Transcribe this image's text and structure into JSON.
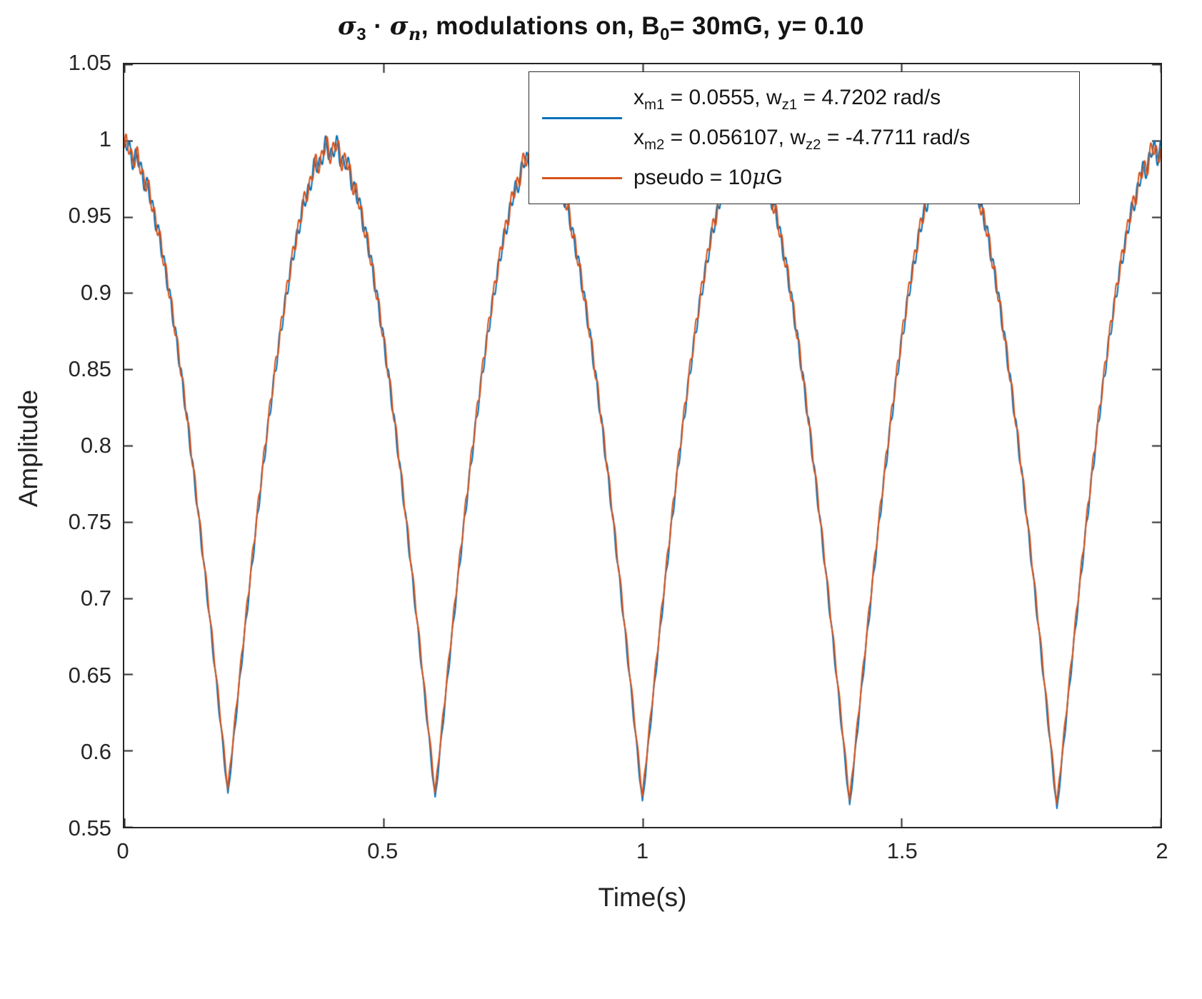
{
  "chart_data": {
    "type": "line",
    "title": "σ3 · σn, modulations on, B0= 30mG, y= 0.10",
    "xlabel": "Time(s)",
    "ylabel": "Amplitude",
    "xlim": [
      0,
      2
    ],
    "ylim": [
      0.55,
      1.05
    ],
    "grid": false,
    "legend_position": "northeast",
    "xticks": [
      {
        "v": 0,
        "label": "0"
      },
      {
        "v": 0.5,
        "label": "0.5"
      },
      {
        "v": 1,
        "label": "1"
      },
      {
        "v": 1.5,
        "label": "1.5"
      },
      {
        "v": 2,
        "label": "2"
      }
    ],
    "yticks": [
      {
        "v": 0.55,
        "label": "0.55"
      },
      {
        "v": 0.6,
        "label": "0.6"
      },
      {
        "v": 0.65,
        "label": "0.65"
      },
      {
        "v": 0.7,
        "label": "0.7"
      },
      {
        "v": 0.75,
        "label": "0.75"
      },
      {
        "v": 0.8,
        "label": "0.8"
      },
      {
        "v": 0.85,
        "label": "0.85"
      },
      {
        "v": 0.9,
        "label": "0.9"
      },
      {
        "v": 0.95,
        "label": "0.95"
      },
      {
        "v": 1,
        "label": "1"
      },
      {
        "v": 1.05,
        "label": "1.05"
      }
    ],
    "series": [
      {
        "name": "x_m1 = 0.0555, w_z1 = 4.7202 rad/s ; x_m2 = 0.056107, w_z2 = -4.7711 rad/s",
        "color": "#0072BD",
        "model": {
          "envelope_period": 0.4,
          "peak": 0.9945,
          "baseline_start": 0.5715,
          "baseline_slope": -0.00625,
          "ripple_amplitude": 0.0055,
          "ripple_freq_hz": 90,
          "ripple_phase": 1.8,
          "tuft_amplitude": 0.005,
          "tuft_freq_hz": 47
        }
      },
      {
        "name": "pseudo = 10μG",
        "color": "#D95319",
        "model": {
          "envelope_period": 0.4,
          "peak": 0.995,
          "baseline_start": 0.5763,
          "baseline_slope": -0.00625,
          "ripple_amplitude": 0.0055,
          "ripple_freq_hz": 90,
          "ripple_phase": 0,
          "tuft_amplitude": 0.005,
          "tuft_freq_hz": 47
        }
      }
    ],
    "envelope_samples": {
      "t": [
        0,
        0.05,
        0.1,
        0.15,
        0.2,
        0.25,
        0.3,
        0.35,
        0.4,
        0.45,
        0.5,
        0.55,
        0.6,
        0.65,
        0.7,
        0.75,
        0.8,
        0.85,
        0.9,
        0.95,
        1,
        1.05,
        1.1,
        1.15,
        1.2,
        1.25,
        1.3,
        1.35,
        1.4,
        1.45,
        1.5,
        1.55,
        1.6,
        1.65,
        1.7,
        1.75,
        1.8,
        1.85,
        1.9,
        1.95,
        2
      ],
      "y": [
        1.0,
        0.967,
        0.874,
        0.735,
        0.575,
        0.735,
        0.874,
        0.967,
        0.998,
        0.967,
        0.874,
        0.735,
        0.571,
        0.735,
        0.874,
        0.967,
        0.996,
        0.967,
        0.874,
        0.735,
        0.573,
        0.735,
        0.874,
        0.967,
        0.997,
        0.967,
        0.874,
        0.735,
        0.566,
        0.735,
        0.874,
        0.967,
        0.997,
        0.967,
        0.874,
        0.735,
        0.565,
        0.735,
        0.874,
        0.967,
        0.999
      ]
    }
  },
  "title_segments": [
    {
      "t": "σ",
      "greek": true
    },
    {
      "t": "3",
      "sub": true
    },
    {
      "t": " · "
    },
    {
      "t": "σ",
      "greek": true
    },
    {
      "t": "n",
      "sub": true,
      "it": true
    },
    {
      "t": ", modulations on, B"
    },
    {
      "t": "0",
      "sub": true
    },
    {
      "t": "= 30mG, y= 0.10"
    }
  ],
  "axis_labels": {
    "x": "Time(s)",
    "y": "Amplitude"
  },
  "legend": {
    "entries": [
      {
        "color": "#0072BD",
        "lines": [
          [
            {
              "t": "x"
            },
            {
              "t": "m1",
              "sub": true
            },
            {
              "t": " = 0.0555, w"
            },
            {
              "t": "z1",
              "sub": true
            },
            {
              "t": " = 4.7202 rad/s"
            }
          ],
          [
            {
              "t": "x"
            },
            {
              "t": "m2",
              "sub": true
            },
            {
              "t": " = 0.056107, w"
            },
            {
              "t": "z2",
              "sub": true
            },
            {
              "t": " = -4.7711 rad/s"
            }
          ]
        ]
      },
      {
        "color": "#D95319",
        "lines": [
          [
            {
              "t": "pseudo = 10"
            },
            {
              "t": "μ",
              "greek": true
            },
            {
              "t": "G"
            }
          ]
        ]
      }
    ]
  },
  "colors": {
    "blue": "#0072BD",
    "orange": "#D95319",
    "axis": "#262626"
  }
}
